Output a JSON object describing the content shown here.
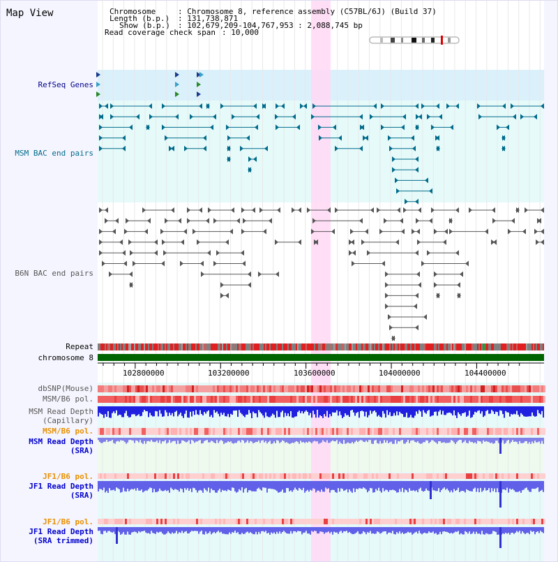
{
  "title": "Map View",
  "header": {
    "chromosome_label": "Chromosome",
    "chromosome_value": ": Chromosome 8, reference assembly (C57BL/6J) (Build 37)",
    "length_label": "Length (b.p.)",
    "length_value": ": 131,738,871",
    "show_label": "Show (b.p.)",
    "show_value": ": 102,679,209-104,767,953 : 2,088,745 bp",
    "coverage_label": "Read coverage check span",
    "coverage_value": ": 10,000"
  },
  "axis": {
    "ticks": [
      "102800000",
      "103200000",
      "103600000",
      "104000000",
      "104400000"
    ]
  },
  "tracks": {
    "refseq": "RefSeq Genes",
    "msm_bac": "MSM BAC end pairs",
    "b6n_bac": "B6N BAC end pairs",
    "repeat": "Repeat",
    "chromosome": "chromosome 8",
    "dbsnp": "dbSNP(Mouse)",
    "msm_b6_pol": "MSM/B6 pol.",
    "msm_depth_cap_1": "MSM Read Depth",
    "msm_depth_cap_2": "(Capillary)",
    "msm_b6_pol_2": "MSM/B6 pol.",
    "msm_depth_sra_1": "MSM Read Depth",
    "msm_depth_sra_2": "(SRA)",
    "jf1_pol": "JF1/B6 pol.",
    "jf1_depth_1": "JF1 Read Depth",
    "jf1_depth_2": "(SRA)",
    "jf1_pol_2": "JF1/B6 pol.",
    "jf1_trim_1": "JF1 Read Depth",
    "jf1_trim_2": "(SRA trimmed)"
  },
  "colors": {
    "refseq": "#00008b",
    "msm": "#006b8a",
    "b6n": "#555555",
    "orange": "#e89000",
    "blue": "#0000cc",
    "highlight": "#ffd8f4",
    "chrom_green": "#006400"
  }
}
